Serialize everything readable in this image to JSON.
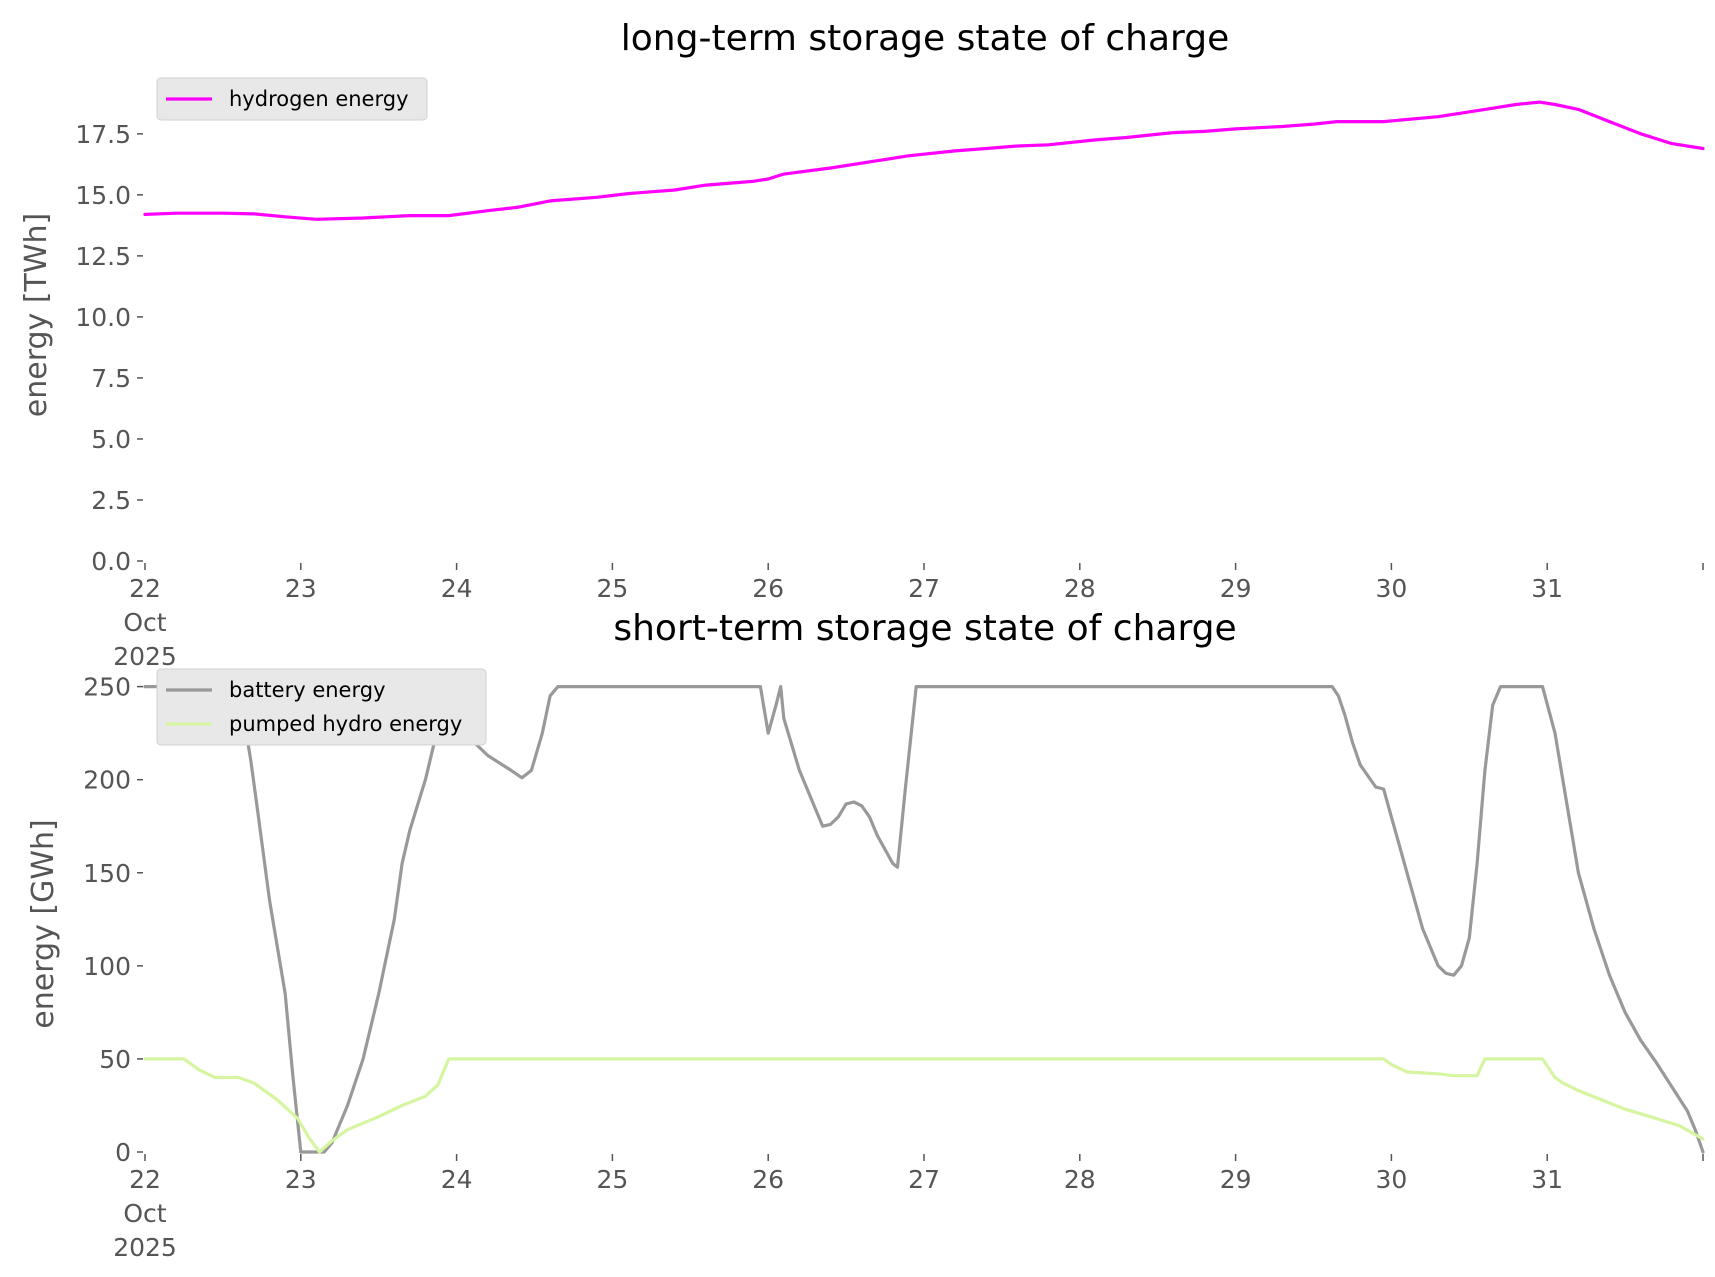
{
  "chart_data": [
    {
      "type": "line",
      "title": "long-term storage state of charge",
      "xlabel": "",
      "ylabel": "energy [TWh]",
      "ylim": [
        0,
        19.5
      ],
      "y_ticks": [
        "0.0",
        "2.5",
        "5.0",
        "7.5",
        "10.0",
        "12.5",
        "15.0",
        "17.5"
      ],
      "y_tick_values": [
        0,
        2.5,
        5,
        7.5,
        10,
        12.5,
        15,
        17.5
      ],
      "x_ticks": [
        "22",
        "23",
        "24",
        "25",
        "26",
        "27",
        "28",
        "29",
        "30",
        "31",
        ""
      ],
      "x_tick_values": [
        22,
        23,
        24,
        25,
        26,
        27,
        28,
        29,
        30,
        31,
        32
      ],
      "x_tick_sublabel": [
        "Oct",
        "2025"
      ],
      "xlim": [
        22,
        32
      ],
      "grid": false,
      "legend": "top-left",
      "series": [
        {
          "name": "hydrogen energy",
          "color": "#ff00ff",
          "x": [
            22.0,
            22.2,
            22.5,
            22.7,
            22.9,
            23.1,
            23.4,
            23.7,
            23.95,
            24.2,
            24.4,
            24.6,
            24.9,
            25.1,
            25.4,
            25.6,
            25.9,
            26.0,
            26.05,
            26.1,
            26.4,
            26.7,
            26.9,
            27.2,
            27.4,
            27.6,
            27.8,
            28.1,
            28.3,
            28.6,
            28.8,
            29.0,
            29.3,
            29.5,
            29.65,
            29.95,
            30.3,
            30.6,
            30.8,
            30.95,
            31.05,
            31.2,
            31.4,
            31.6,
            31.8,
            32.0
          ],
          "y": [
            14.2,
            14.25,
            14.25,
            14.22,
            14.1,
            14.0,
            14.05,
            14.15,
            14.15,
            14.35,
            14.5,
            14.75,
            14.9,
            15.05,
            15.2,
            15.4,
            15.55,
            15.65,
            15.75,
            15.85,
            16.1,
            16.4,
            16.6,
            16.8,
            16.9,
            17.0,
            17.05,
            17.25,
            17.35,
            17.55,
            17.6,
            17.7,
            17.8,
            17.9,
            18.0,
            18.0,
            18.2,
            18.5,
            18.7,
            18.8,
            18.7,
            18.5,
            18.0,
            17.5,
            17.1,
            16.9
          ]
        }
      ]
    },
    {
      "type": "line",
      "title": "short-term storage state of charge",
      "xlabel": "",
      "ylabel": "energy [GWh]",
      "ylim": [
        0,
        260
      ],
      "y_ticks": [
        "0",
        "50",
        "100",
        "150",
        "200",
        "250"
      ],
      "y_tick_values": [
        0,
        50,
        100,
        150,
        200,
        250
      ],
      "x_ticks": [
        "22",
        "23",
        "24",
        "25",
        "26",
        "27",
        "28",
        "29",
        "30",
        "31",
        ""
      ],
      "x_tick_values": [
        22,
        23,
        24,
        25,
        26,
        27,
        28,
        29,
        30,
        31,
        32
      ],
      "x_tick_sublabel": [
        "Oct",
        "2025"
      ],
      "xlim": [
        22,
        32
      ],
      "grid": false,
      "legend": "top-left",
      "series": [
        {
          "name": "battery energy",
          "color": "#999999",
          "x": [
            22.0,
            22.25,
            22.3,
            22.35,
            22.4,
            22.45,
            22.55,
            22.6,
            22.65,
            22.68,
            22.72,
            22.8,
            22.9,
            22.95,
            23.0,
            23.1,
            23.15,
            23.2,
            23.3,
            23.4,
            23.5,
            23.6,
            23.65,
            23.7,
            23.8,
            23.9,
            23.95,
            24.05,
            24.2,
            24.35,
            24.42,
            24.48,
            24.55,
            24.6,
            24.65,
            24.7,
            25.0,
            25.5,
            25.95,
            26.0,
            26.05,
            26.08,
            26.1,
            26.2,
            26.3,
            26.35,
            26.4,
            26.45,
            26.5,
            26.55,
            26.6,
            26.65,
            26.7,
            26.8,
            26.83,
            26.88,
            26.95,
            27.0,
            27.5,
            28.0,
            28.5,
            29.0,
            29.5,
            29.62,
            29.66,
            29.7,
            29.75,
            29.8,
            29.85,
            29.9,
            29.95,
            30.0,
            30.05,
            30.1,
            30.2,
            30.3,
            30.35,
            30.4,
            30.45,
            30.5,
            30.55,
            30.6,
            30.65,
            30.7,
            30.85,
            30.97,
            31.05,
            31.1,
            31.15,
            31.2,
            31.3,
            31.4,
            31.5,
            31.6,
            31.7,
            31.8,
            31.9,
            31.95,
            32.0
          ],
          "y": [
            250,
            250,
            248,
            240,
            232,
            228,
            232,
            235,
            225,
            210,
            185,
            135,
            85,
            40,
            0,
            0,
            0,
            5,
            25,
            50,
            85,
            125,
            155,
            173,
            200,
            235,
            250,
            225,
            213,
            205,
            201,
            205,
            225,
            245,
            250,
            250,
            250,
            250,
            250,
            225,
            240,
            250,
            233,
            205,
            185,
            175,
            176,
            180,
            187,
            188,
            186,
            180,
            170,
            155,
            153,
            195,
            250,
            250,
            250,
            250,
            250,
            250,
            250,
            250,
            245,
            235,
            220,
            208,
            202,
            196,
            195,
            180,
            165,
            150,
            120,
            100,
            96,
            95,
            100,
            115,
            155,
            205,
            240,
            250,
            250,
            250,
            225,
            200,
            175,
            150,
            120,
            95,
            75,
            60,
            48,
            35,
            22,
            12,
            0
          ]
        },
        {
          "name": "pumped hydro energy",
          "color": "#d6f5a0",
          "x": [
            22.0,
            22.25,
            22.35,
            22.45,
            22.6,
            22.7,
            22.85,
            22.98,
            23.05,
            23.12,
            23.2,
            23.3,
            23.5,
            23.65,
            23.8,
            23.88,
            23.95,
            24.1,
            25.0,
            26.0,
            27.0,
            28.0,
            29.0,
            29.95,
            30.0,
            30.1,
            30.3,
            30.4,
            30.55,
            30.6,
            30.65,
            30.7,
            30.97,
            31.05,
            31.1,
            31.2,
            31.35,
            31.5,
            31.7,
            31.85,
            32.0
          ],
          "y": [
            50,
            50,
            44,
            40,
            40,
            37,
            28,
            18,
            8,
            0,
            6,
            12,
            19,
            25,
            30,
            36,
            50,
            50,
            50,
            50,
            50,
            50,
            50,
            50,
            47,
            43,
            42,
            41,
            41,
            50,
            50,
            50,
            50,
            40,
            37,
            33,
            28,
            23,
            18,
            14,
            7
          ]
        }
      ]
    }
  ]
}
